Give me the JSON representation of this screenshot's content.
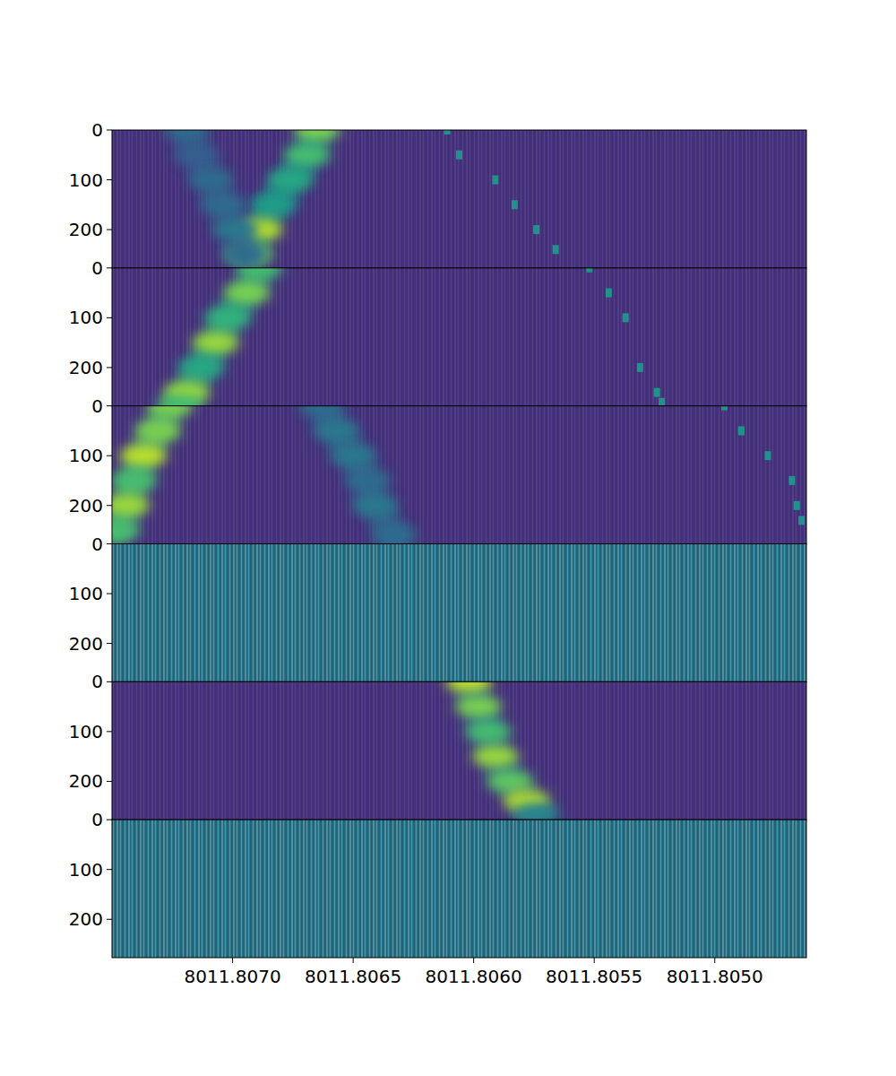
{
  "chart_data": [
    {
      "type": "heatmap",
      "color": "#46327e",
      "xlim": [
        8011.8075,
        8011.80462
      ],
      "ylim": [
        277,
        0
      ],
      "yticks": [
        0,
        100,
        200
      ],
      "tick_labels": "y",
      "series": [
        {
          "marker": "band",
          "x": [
            8011.80665,
            8011.80669,
            8011.80676,
            8011.80683,
            8011.80689,
            8011.80693
          ],
          "y": [
            0,
            50,
            100,
            150,
            200,
            250
          ],
          "intensity": [
            0.8,
            0.7,
            0.6,
            0.55,
            0.9,
            0.8
          ]
        },
        {
          "marker": "band",
          "x": [
            8011.80719,
            8011.80715,
            8011.80709,
            8011.80704,
            8011.80699,
            8011.80695
          ],
          "y": [
            0,
            50,
            100,
            150,
            200,
            250
          ],
          "intensity": [
            0.35,
            0.3,
            0.35,
            0.35,
            0.4,
            0.35
          ]
        },
        {
          "marker": "square",
          "color": "#21918c",
          "x": [
            8011.80611,
            8011.80606,
            8011.80591,
            8011.80583,
            8011.80574,
            8011.80566
          ],
          "y": [
            0,
            50,
            100,
            150,
            200,
            240
          ]
        }
      ]
    },
    {
      "type": "heatmap",
      "color": "#46327e",
      "xlim": [
        8011.8075,
        8011.80462
      ],
      "ylim": [
        277,
        0
      ],
      "yticks": [
        0,
        100,
        200
      ],
      "tick_labels": "y",
      "series": [
        {
          "marker": "band",
          "x": [
            8011.80689,
            8011.80694,
            8011.80702,
            8011.80707,
            8011.80713,
            8011.80719,
            8011.80722
          ],
          "y": [
            0,
            50,
            100,
            150,
            200,
            250,
            277
          ],
          "intensity": [
            0.7,
            0.8,
            0.65,
            0.85,
            0.6,
            0.85,
            0.7
          ]
        },
        {
          "marker": "square",
          "color": "#21918c",
          "x": [
            8011.80552,
            8011.80544,
            8011.80537,
            8011.80531,
            8011.80524,
            8011.80522
          ],
          "y": [
            0,
            50,
            100,
            200,
            250,
            270
          ]
        }
      ]
    },
    {
      "type": "heatmap",
      "color": "#46327e",
      "xlim": [
        8011.8075,
        8011.80462
      ],
      "ylim": [
        277,
        0
      ],
      "yticks": [
        0,
        100,
        200
      ],
      "tick_labels": "y",
      "series": [
        {
          "marker": "band",
          "x": [
            8011.80726,
            8011.80731,
            8011.80737,
            8011.80741,
            8011.80744,
            8011.80748
          ],
          "y": [
            0,
            50,
            100,
            150,
            200,
            250
          ],
          "intensity": [
            0.8,
            0.8,
            0.9,
            0.7,
            0.85,
            0.7
          ]
        },
        {
          "marker": "band",
          "x": [
            8011.80663,
            8011.80657,
            8011.8065,
            8011.80644,
            8011.80641,
            8011.80633
          ],
          "y": [
            0,
            50,
            100,
            150,
            200,
            260
          ],
          "intensity": [
            0.35,
            0.4,
            0.4,
            0.35,
            0.4,
            0.35
          ]
        },
        {
          "marker": "square",
          "color": "#21918c",
          "x": [
            8011.80496,
            8011.80489,
            8011.80478,
            8011.80468,
            8011.80466,
            8011.80464
          ],
          "y": [
            0,
            50,
            100,
            150,
            200,
            230
          ]
        }
      ]
    },
    {
      "type": "heatmap",
      "color": "#2a788e",
      "xlim": [
        8011.8075,
        8011.80462
      ],
      "ylim": [
        277,
        0
      ],
      "yticks": [
        0,
        100,
        200
      ],
      "tick_labels": "y",
      "series": []
    },
    {
      "type": "heatmap",
      "color": "#46327e",
      "xlim": [
        8011.8075,
        8011.80462
      ],
      "ylim": [
        277,
        0
      ],
      "yticks": [
        0,
        100,
        200
      ],
      "tick_labels": "y",
      "series": [
        {
          "marker": "band",
          "x": [
            8011.80602,
            8011.80598,
            8011.80594,
            8011.80591,
            8011.80585,
            8011.80578,
            8011.80574
          ],
          "y": [
            0,
            50,
            100,
            150,
            200,
            240,
            265
          ],
          "intensity": [
            0.9,
            0.8,
            0.7,
            0.85,
            0.75,
            0.9,
            0.45
          ]
        }
      ]
    },
    {
      "type": "heatmap",
      "color": "#2a788e",
      "xlim": [
        8011.8075,
        8011.80462
      ],
      "ylim": [
        277,
        0
      ],
      "yticks": [
        0,
        100,
        200
      ],
      "xticks": [
        {
          "value": 8011.807,
          "label": "8011.8070"
        },
        8011.8065,
        {
          "value": 8011.806,
          "label": "8011.8060"
        },
        8011.8055,
        {
          "value": 8011.805,
          "label": "8011.8050"
        }
      ],
      "series": []
    }
  ]
}
